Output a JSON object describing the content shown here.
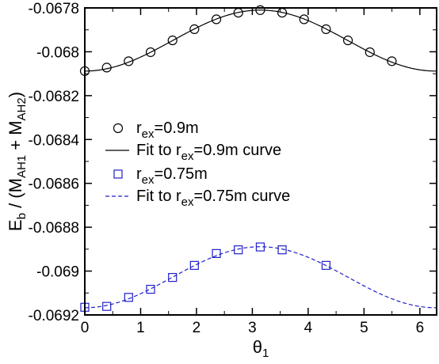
{
  "chart_data": {
    "type": "scatter",
    "xlabel": "θ",
    "xlabel_sub": "1",
    "ylabel": "E",
    "ylabel_sub": "b",
    "ylabel_rest_1": " / (M",
    "ylabel_sub2": "AH1",
    "ylabel_rest_2": " + M",
    "ylabel_sub3": "AH2",
    "ylabel_rest_3": ")",
    "xlim": [
      0,
      6.3
    ],
    "ylim": [
      -0.0692,
      -0.0678
    ],
    "xticks": [
      0,
      1,
      2,
      3,
      4,
      5,
      6
    ],
    "xtick_labels": [
      "0",
      "1",
      "2",
      "3",
      "4",
      "5",
      "6"
    ],
    "yticks": [
      -0.0692,
      -0.069,
      -0.0688,
      -0.0686,
      -0.0684,
      -0.0682,
      -0.068,
      -0.0678
    ],
    "ytick_labels": [
      "-0.0692",
      "-0.069",
      "-0.0688",
      "-0.0686",
      "-0.0684",
      "-0.0682",
      "-0.068",
      "-0.0678"
    ],
    "grid": false,
    "legend_position": "middle-left",
    "series": [
      {
        "name_main": "r",
        "name_sub": "ex",
        "name_rest": "=0.9m",
        "marker": "circle",
        "color": "#000000",
        "x": [
          0,
          0.393,
          0.785,
          1.178,
          1.571,
          1.963,
          2.356,
          2.749,
          3.142,
          3.534,
          3.927,
          4.32,
          4.712,
          5.105,
          5.498
        ],
        "y": [
          -0.068088,
          -0.068072,
          -0.068043,
          -0.068002,
          -0.067948,
          -0.067897,
          -0.067852,
          -0.067822,
          -0.06781,
          -0.067822,
          -0.067852,
          -0.067897,
          -0.067948,
          -0.068002,
          -0.068043
        ]
      },
      {
        "name_main": "Fit to r",
        "name_sub": "ex",
        "name_rest": "=0.9m curve",
        "style": "solid-line",
        "color": "#000000",
        "fit": {
          "a": -0.067949,
          "b": -0.000139
        }
      },
      {
        "name_main": "r",
        "name_sub": "ex",
        "name_rest": "=0.75m",
        "marker": "square",
        "color": "#2020c8",
        "x": [
          0,
          0.393,
          0.785,
          1.178,
          1.571,
          1.963,
          2.356,
          2.749,
          3.142,
          3.534,
          4.32
        ],
        "y": [
          -0.069165,
          -0.069161,
          -0.06912,
          -0.069083,
          -0.069029,
          -0.068974,
          -0.06892,
          -0.068903,
          -0.06889,
          -0.068903,
          -0.068974
        ]
      },
      {
        "name_main": "Fit to r",
        "name_sub": "ex",
        "name_rest": "=0.75m curve",
        "style": "dashed-line",
        "color": "#2020c8",
        "fit": {
          "a": -0.069028,
          "b": -0.000139
        }
      }
    ]
  }
}
